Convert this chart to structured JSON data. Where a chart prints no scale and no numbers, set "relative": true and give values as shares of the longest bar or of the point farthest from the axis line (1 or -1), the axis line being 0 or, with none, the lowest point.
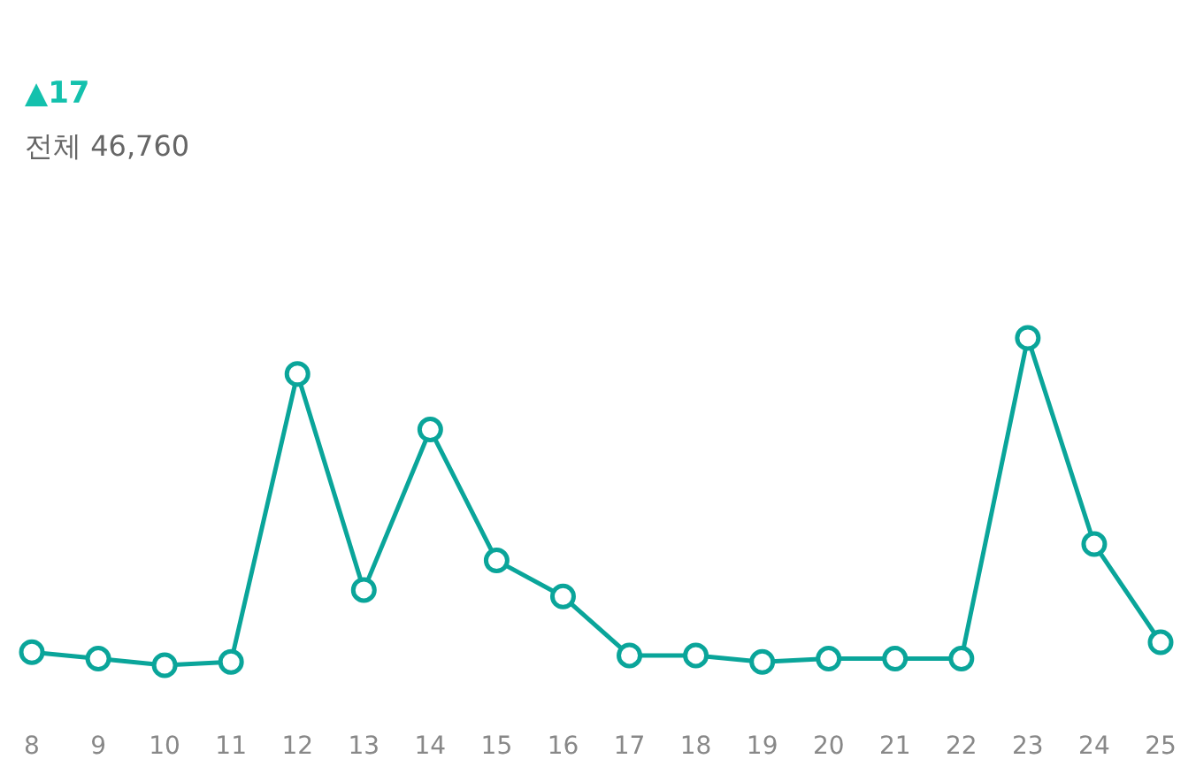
{
  "chart_data": {
    "type": "line",
    "relative": true,
    "marker": "circle",
    "color": "#0aa59a",
    "annotations": [
      "▲17",
      "전체 46,760"
    ],
    "categories": [
      "8",
      "9",
      "10",
      "11",
      "12",
      "13",
      "14",
      "15",
      "16",
      "17",
      "18",
      "19",
      "20",
      "21",
      "22",
      "23",
      "24",
      "25"
    ],
    "values": [
      0.04,
      0.02,
      0,
      0.01,
      0.89,
      0.23,
      0.72,
      0.32,
      0.21,
      0.03,
      0.03,
      0.01,
      0.02,
      0.02,
      0.02,
      1,
      0.37,
      0.07
    ]
  }
}
